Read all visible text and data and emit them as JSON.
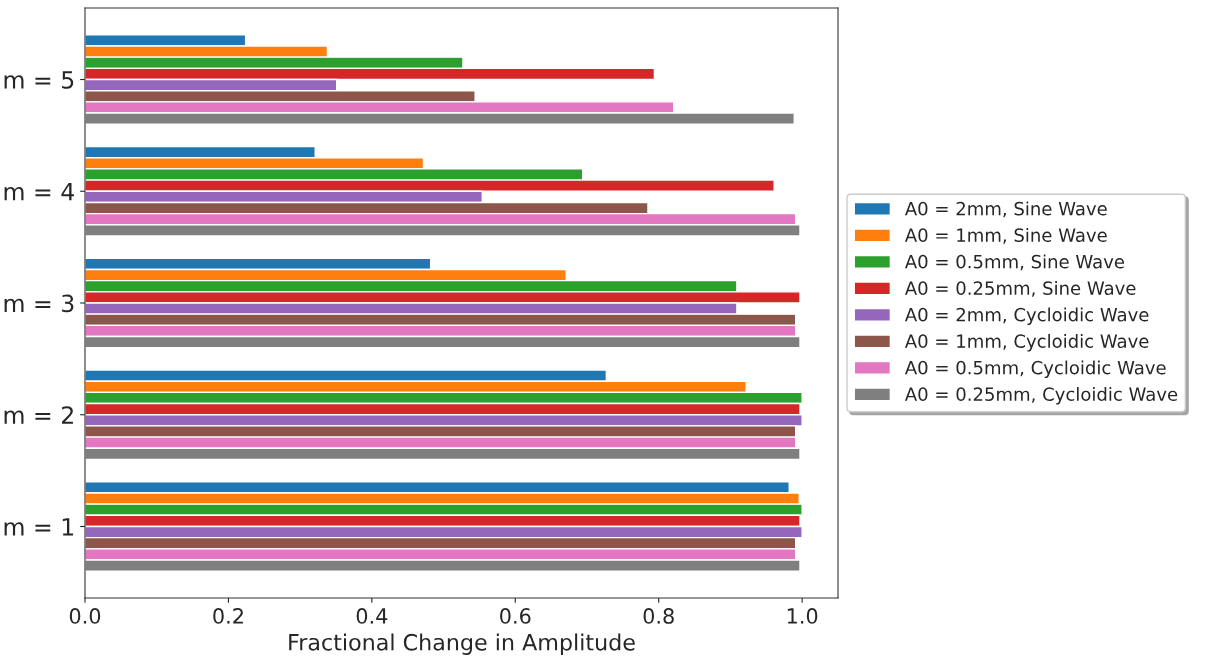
{
  "chart_data": {
    "type": "bar",
    "orientation": "horizontal",
    "xlabel": "Fractional Change in Amplitude",
    "categories": [
      "m = 5",
      "m = 4",
      "m = 3",
      "m = 2",
      "m = 1"
    ],
    "xlim": [
      0,
      1.05
    ],
    "xticks": [
      {
        "value": 0,
        "label": "0.0"
      },
      0.2,
      0.4,
      0.6,
      0.8,
      {
        "value": 1,
        "label": "1.0"
      }
    ],
    "grid": false,
    "legend": "right",
    "series": [
      {
        "name": "A0 = 2mm, Sine Wave",
        "color": "#1f77b4",
        "values": [
          0.224,
          0.321,
          0.482,
          0.727,
          0.982
        ]
      },
      {
        "name": "A0 = 1mm, Sine Wave",
        "color": "#ff7f0e",
        "values": [
          0.338,
          0.472,
          0.671,
          0.922,
          0.996
        ]
      },
      {
        "name": "A0 = 0.5mm, Sine Wave",
        "color": "#2ca02c",
        "values": [
          0.527,
          0.694,
          0.909,
          1.0,
          1.0
        ]
      },
      {
        "name": "A0 = 0.25mm, Sine Wave",
        "color": "#d62728",
        "values": [
          0.794,
          0.961,
          0.997,
          0.997,
          0.997
        ]
      },
      {
        "name": "A0 = 2mm, Cycloidic Wave",
        "color": "#9467bd",
        "values": [
          0.351,
          0.554,
          0.909,
          1.0,
          1.0
        ]
      },
      {
        "name": "A0 = 1mm, Cycloidic Wave",
        "color": "#8c564b",
        "values": [
          0.544,
          0.785,
          0.991,
          0.991,
          0.991
        ]
      },
      {
        "name": "A0 = 0.5mm, Cycloidic Wave",
        "color": "#e377c2",
        "values": [
          0.821,
          0.991,
          0.991,
          0.991,
          0.991
        ]
      },
      {
        "name": "A0 = 0.25mm, Cycloidic Wave",
        "color": "#7f7f7f",
        "values": [
          0.989,
          0.997,
          0.997,
          0.997,
          0.997
        ]
      }
    ]
  }
}
